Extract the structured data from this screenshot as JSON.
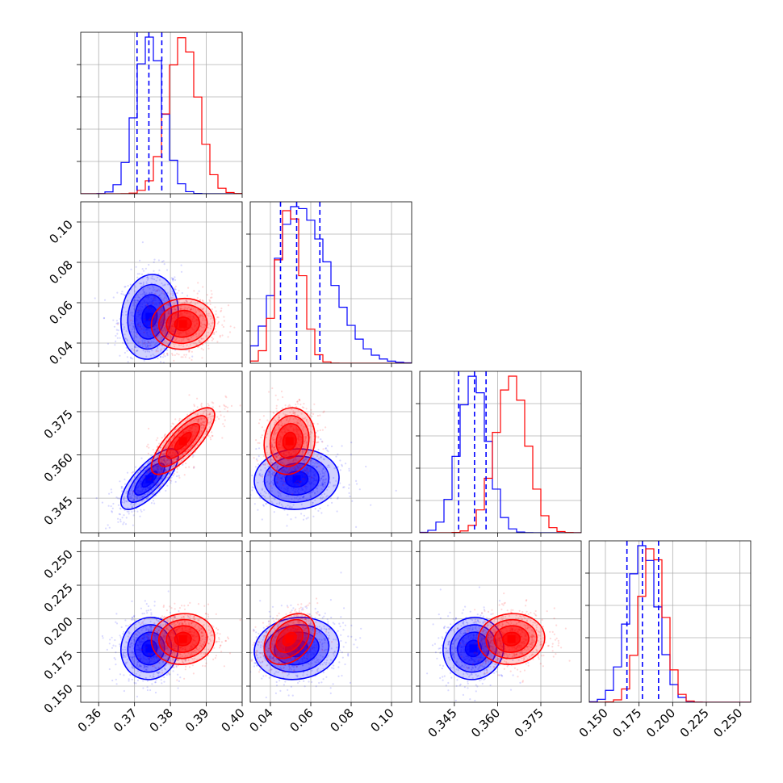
{
  "chart_data": {
    "type": "corner",
    "grid": true,
    "legend": "none",
    "parameters": [
      {
        "key": "p1",
        "range": [
          0.355,
          0.4
        ],
        "ticks": [
          "0.36",
          "0.37",
          "0.38",
          "0.39",
          "0.40"
        ],
        "tick_values": [
          0.36,
          0.37,
          0.38,
          0.39,
          0.4
        ]
      },
      {
        "key": "p2",
        "range": [
          0.03,
          0.11
        ],
        "ticks": [
          "0.04",
          "0.06",
          "0.08",
          "0.10"
        ],
        "tick_values": [
          0.04,
          0.06,
          0.08,
          0.1
        ]
      },
      {
        "key": "p3",
        "range": [
          0.333,
          0.389
        ],
        "ticks": [
          "0.345",
          "0.360",
          "0.375"
        ],
        "tick_values": [
          0.345,
          0.36,
          0.375
        ]
      },
      {
        "key": "p4",
        "range": [
          0.138,
          0.258
        ],
        "ticks": [
          "0.150",
          "0.175",
          "0.200",
          "0.225",
          "0.250"
        ],
        "tick_values": [
          0.15,
          0.175,
          0.2,
          0.225,
          0.25
        ]
      }
    ],
    "series": [
      {
        "color": "#0000ff",
        "mean": [
          0.3742,
          0.053,
          0.3516,
          0.178
        ],
        "sd": [
          0.0038,
          0.01,
          0.005,
          0.011
        ],
        "corr": [
          [
            1,
            0.1,
            0.75,
            0.05
          ],
          [
            0.1,
            1,
            0.05,
            0.1
          ],
          [
            0.75,
            0.05,
            1,
            0.05
          ],
          [
            0.05,
            0.1,
            0.05,
            1
          ]
        ],
        "quantiles": {
          "p1": [
            0.3707,
            0.374,
            0.3776
          ],
          "p2": [
            0.045,
            0.053,
            0.0645
          ],
          "p3": [
            0.3465,
            0.352,
            0.356
          ],
          "p4": [
            0.166,
            0.1775,
            0.1895
          ]
        }
      },
      {
        "color": "#ff0000",
        "mean": [
          0.3835,
          0.0495,
          0.3648,
          0.185
        ],
        "sd": [
          0.0042,
          0.006,
          0.0055,
          0.009
        ],
        "corr": [
          [
            1,
            0.05,
            0.78,
            0.05
          ],
          [
            0.05,
            1,
            0.1,
            0.35
          ],
          [
            0.78,
            0.1,
            1,
            0.05
          ],
          [
            0.05,
            0.35,
            0.05,
            1
          ]
        ]
      }
    ]
  }
}
